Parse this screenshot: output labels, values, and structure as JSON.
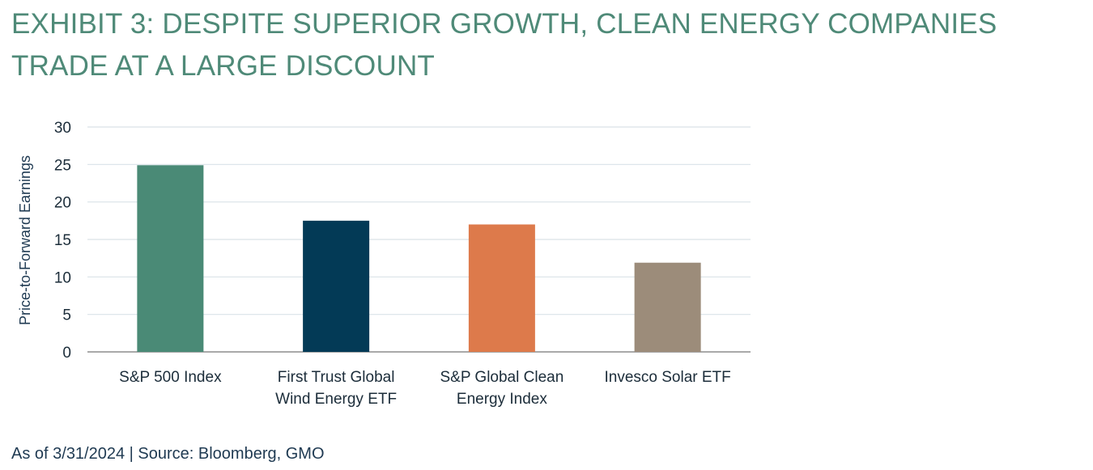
{
  "chart_data": {
    "type": "bar",
    "title": "EXHIBIT 3: DESPITE SUPERIOR GROWTH, CLEAN ENERGY COMPANIES TRADE AT A LARGE DISCOUNT",
    "ylabel": "Price-to-Forward Earnings",
    "xlabel": "",
    "categories": [
      [
        "S&P 500 Index"
      ],
      [
        "First Trust Global",
        "Wind Energy ETF"
      ],
      [
        "S&P Global Clean",
        "Energy Index"
      ],
      [
        "Invesco Solar ETF"
      ]
    ],
    "values": [
      24.9,
      17.5,
      17.0,
      11.9
    ],
    "colors": [
      "#4a8a76",
      "#033a56",
      "#dd7a4b",
      "#9c8c7a"
    ],
    "ylim": [
      0,
      30
    ],
    "yticks": [
      0,
      5,
      10,
      15,
      20,
      25,
      30
    ],
    "grid": true,
    "legend": "none"
  },
  "footer": {
    "source": "As of 3/31/2024 | Source: Bloomberg, GMO"
  }
}
